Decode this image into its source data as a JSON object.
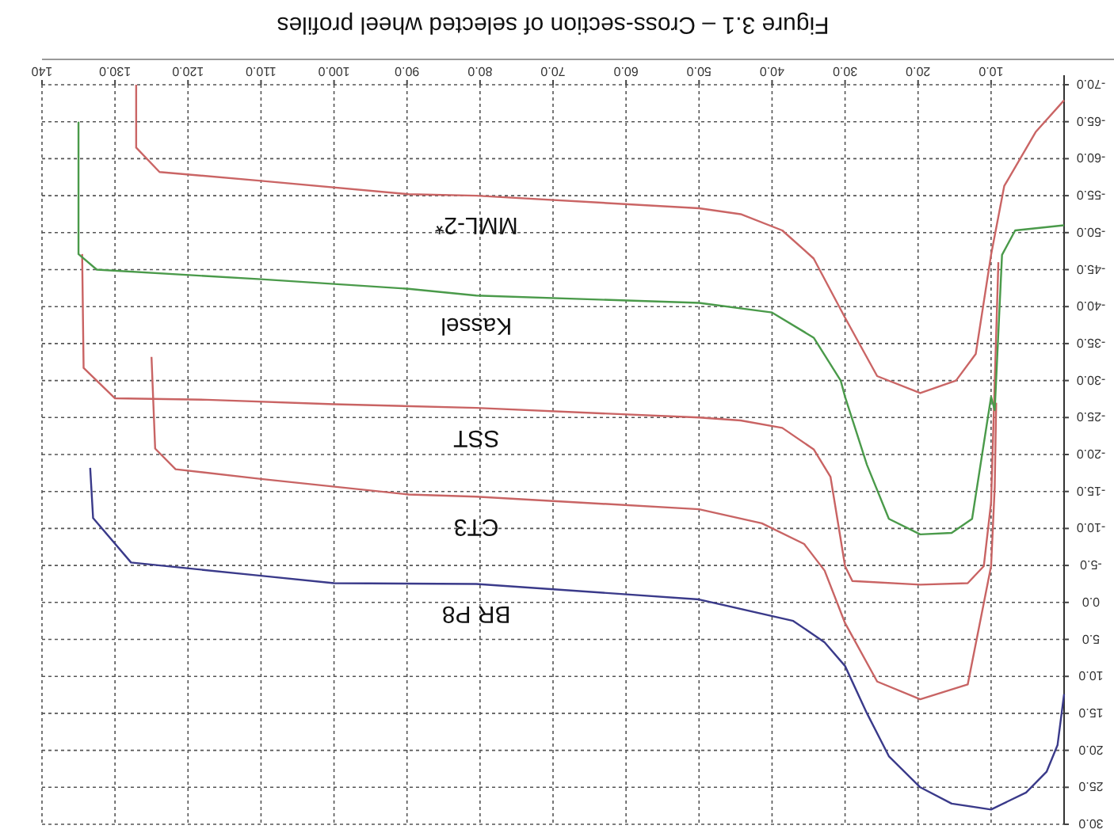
{
  "chart_data": {
    "type": "line",
    "title": "Figure 3.1 – Cross-section of selected wheel profiles",
    "xlim": [
      140,
      0
    ],
    "ylim": [
      30,
      -70
    ],
    "xticks": [
      {
        "value": 10,
        "label": "10.0"
      },
      {
        "value": 20,
        "label": "20.0"
      },
      {
        "value": 30,
        "label": "30.0"
      },
      {
        "value": 40,
        "label": "40.0"
      },
      {
        "value": 50,
        "label": "50.0"
      },
      {
        "value": 60,
        "label": "60.0"
      },
      {
        "value": 70,
        "label": "70.0"
      },
      {
        "value": 80,
        "label": "80.0"
      },
      {
        "value": 90,
        "label": "90.0"
      },
      {
        "value": 100,
        "label": "100.0"
      },
      {
        "value": 110,
        "label": "110.0"
      },
      {
        "value": 120,
        "label": "120.0"
      },
      {
        "value": 130,
        "label": "130.0"
      },
      140
    ],
    "yticks": [
      {
        "value": -70,
        "label": "-70.0"
      },
      {
        "value": -65,
        "label": "-65.0"
      },
      {
        "value": -60,
        "label": "-60.0"
      },
      {
        "value": -55,
        "label": "-55.0"
      },
      {
        "value": -50,
        "label": "-50.0"
      },
      {
        "value": -45,
        "label": "-45.0"
      },
      {
        "value": -40,
        "label": "-40.0"
      },
      {
        "value": -35,
        "label": "-35.0"
      },
      {
        "value": -30,
        "label": "-30.0"
      },
      {
        "value": -25,
        "label": "-25.0"
      },
      {
        "value": -20,
        "label": "-20.0"
      },
      {
        "value": -15,
        "label": "-15.0"
      },
      {
        "value": -10,
        "label": "-10.0"
      },
      {
        "value": -5,
        "label": "-5.0"
      },
      {
        "value": 0,
        "label": "0.0"
      },
      {
        "value": 5,
        "label": "5.0"
      },
      {
        "value": 10,
        "label": "10.0"
      },
      {
        "value": 15,
        "label": "15.0"
      },
      {
        "value": 20,
        "label": "20.0"
      },
      {
        "value": 25,
        "label": "25.0"
      },
      {
        "value": 30,
        "label": "30.0"
      }
    ],
    "grid": true,
    "legend": false,
    "line_style": "solid",
    "marker": "none",
    "series": [
      {
        "name": "BR P8",
        "color": "#3a3a8a",
        "x": [
          0,
          0.9,
          2.4,
          5.2,
          10,
          15.4,
          19.7,
          24,
          27,
          30,
          32.8,
          37.1,
          50,
          80.5,
          100,
          110,
          127.8,
          133,
          133.4
        ],
        "values": [
          12.4,
          19.3,
          22.9,
          25.7,
          28,
          27.2,
          25,
          20.8,
          15,
          8.6,
          5.4,
          2.5,
          -0.4,
          -2.5,
          -2.6,
          -3.6,
          -5.4,
          -11.4,
          -18.2
        ]
      },
      {
        "name": "CT3",
        "color": "#c86464",
        "x": [
          9.3,
          9.5,
          10,
          13.2,
          19.7,
          25.6,
          30,
          32.8,
          35.6,
          41.4,
          50,
          80.5,
          89.8,
          110,
          121.7,
          124.5,
          125
        ],
        "values": [
          -27,
          -15.6,
          -4.9,
          11.1,
          13.1,
          10.7,
          2.8,
          -4.3,
          -7.9,
          -10.7,
          -12.6,
          -14.3,
          -14.6,
          -16.7,
          -18,
          -20.8,
          -33.2
        ]
      },
      {
        "name": "SST",
        "color": "#c96363",
        "x": [
          9,
          10,
          11,
          13.2,
          19.7,
          29,
          30,
          32,
          34.3,
          38.6,
          44.3,
          50,
          80.5,
          100,
          117.4,
          130,
          134.3,
          134.5
        ],
        "values": [
          -46,
          -13.5,
          -4.9,
          -2.6,
          -2.4,
          -2.9,
          -4.9,
          -17,
          -20.7,
          -23.6,
          -24.6,
          -25,
          -26.3,
          -26.8,
          -27.4,
          -27.6,
          -31.7,
          -47.1
        ]
      },
      {
        "name": "Kassel",
        "color": "#4a9a4a",
        "x": [
          0,
          6.7,
          8.5,
          9.5,
          10,
          12.6,
          15.4,
          19.7,
          24,
          27,
          30,
          30.6,
          34.3,
          40,
          50,
          80.5,
          89.8,
          110,
          132.5,
          135,
          135
        ],
        "values": [
          -51,
          -50.3,
          -47,
          -26,
          -27.8,
          -11.3,
          -9.4,
          -9.2,
          -11.3,
          -18.6,
          -27.8,
          -30,
          -35.8,
          -39.2,
          -40.5,
          -41.5,
          -42.4,
          -43.7,
          -45,
          -47.1,
          -65
        ]
      },
      {
        "name": "MML-2*",
        "color": "#ca6565",
        "x": [
          0,
          3.9,
          8.2,
          10,
          12.1,
          14.8,
          19.7,
          25.6,
          30,
          34.3,
          38.6,
          44.3,
          50,
          80.5,
          89.8,
          110,
          123.9,
          127.1,
          127.1
        ],
        "values": [
          -67.9,
          -63.6,
          -56.3,
          -47,
          -33.6,
          -30,
          -28.3,
          -30.6,
          -38.5,
          -46.5,
          -50.3,
          -52.5,
          -53.3,
          -55,
          -55.2,
          -57,
          -58.2,
          -61.5,
          -70
        ]
      }
    ]
  }
}
